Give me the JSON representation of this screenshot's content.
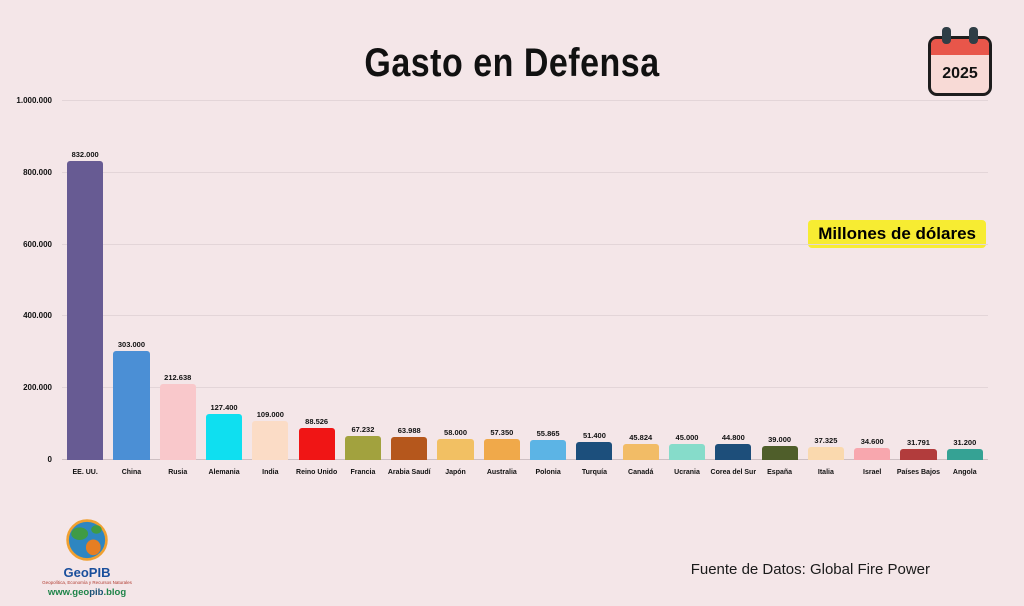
{
  "title": "Gasto en Defensa",
  "year": "2025",
  "unit_badge": "Millones de dólares",
  "source": "Fuente de Datos: Global Fire Power",
  "logo": {
    "name": "GeoPIB",
    "tagline": "Geopolítica, Economía y Recursos Naturales",
    "url_prefix": "www.geo",
    "url_mid": "pib",
    "url_suffix": ".blog"
  },
  "chart_data": {
    "type": "bar",
    "title": "Gasto en Defensa",
    "xlabel": "",
    "ylabel": "Millones de dólares",
    "ylim": [
      0,
      1000000
    ],
    "grid": true,
    "legend_position": "none",
    "ytick_labels": [
      "0",
      "200.000",
      "400.000",
      "600.000",
      "800.000",
      "1.000.000"
    ],
    "categories": [
      "EE. UU.",
      "China",
      "Rusia",
      "Alemania",
      "India",
      "Reino Unido",
      "Francia",
      "Arabia Saudí",
      "Japón",
      "Australia",
      "Polonia",
      "Turquía",
      "Canadá",
      "Ucrania",
      "Corea del Sur",
      "España",
      "Italia",
      "Israel",
      "Países Bajos",
      "Angola"
    ],
    "values": [
      832000,
      303000,
      212638,
      127400,
      109000,
      88526,
      67232,
      63988,
      58000,
      57350,
      55865,
      51400,
      45824,
      45000,
      44800,
      39000,
      37325,
      34600,
      31791,
      31200
    ],
    "value_labels": [
      "832.000",
      "303.000",
      "212.638",
      "127.400",
      "109.000",
      "88.526",
      "67.232",
      "63.988",
      "58.000",
      "57.350",
      "55.865",
      "51.400",
      "45.824",
      "45.000",
      "44.800",
      "39.000",
      "37.325",
      "34.600",
      "31.791",
      "31.200"
    ],
    "colors": [
      "#675b93",
      "#4b8fd5",
      "#f9c8cb",
      "#0fdff0",
      "#fbdcc6",
      "#f01515",
      "#a2a23e",
      "#b5571c",
      "#f2c063",
      "#f0a94a",
      "#5cb4e5",
      "#1c4f7c",
      "#f2bc66",
      "#86dcca",
      "#1d4e7a",
      "#4f5e2a",
      "#fad9ae",
      "#f8a7ae",
      "#b23c3c",
      "#35a294"
    ]
  }
}
